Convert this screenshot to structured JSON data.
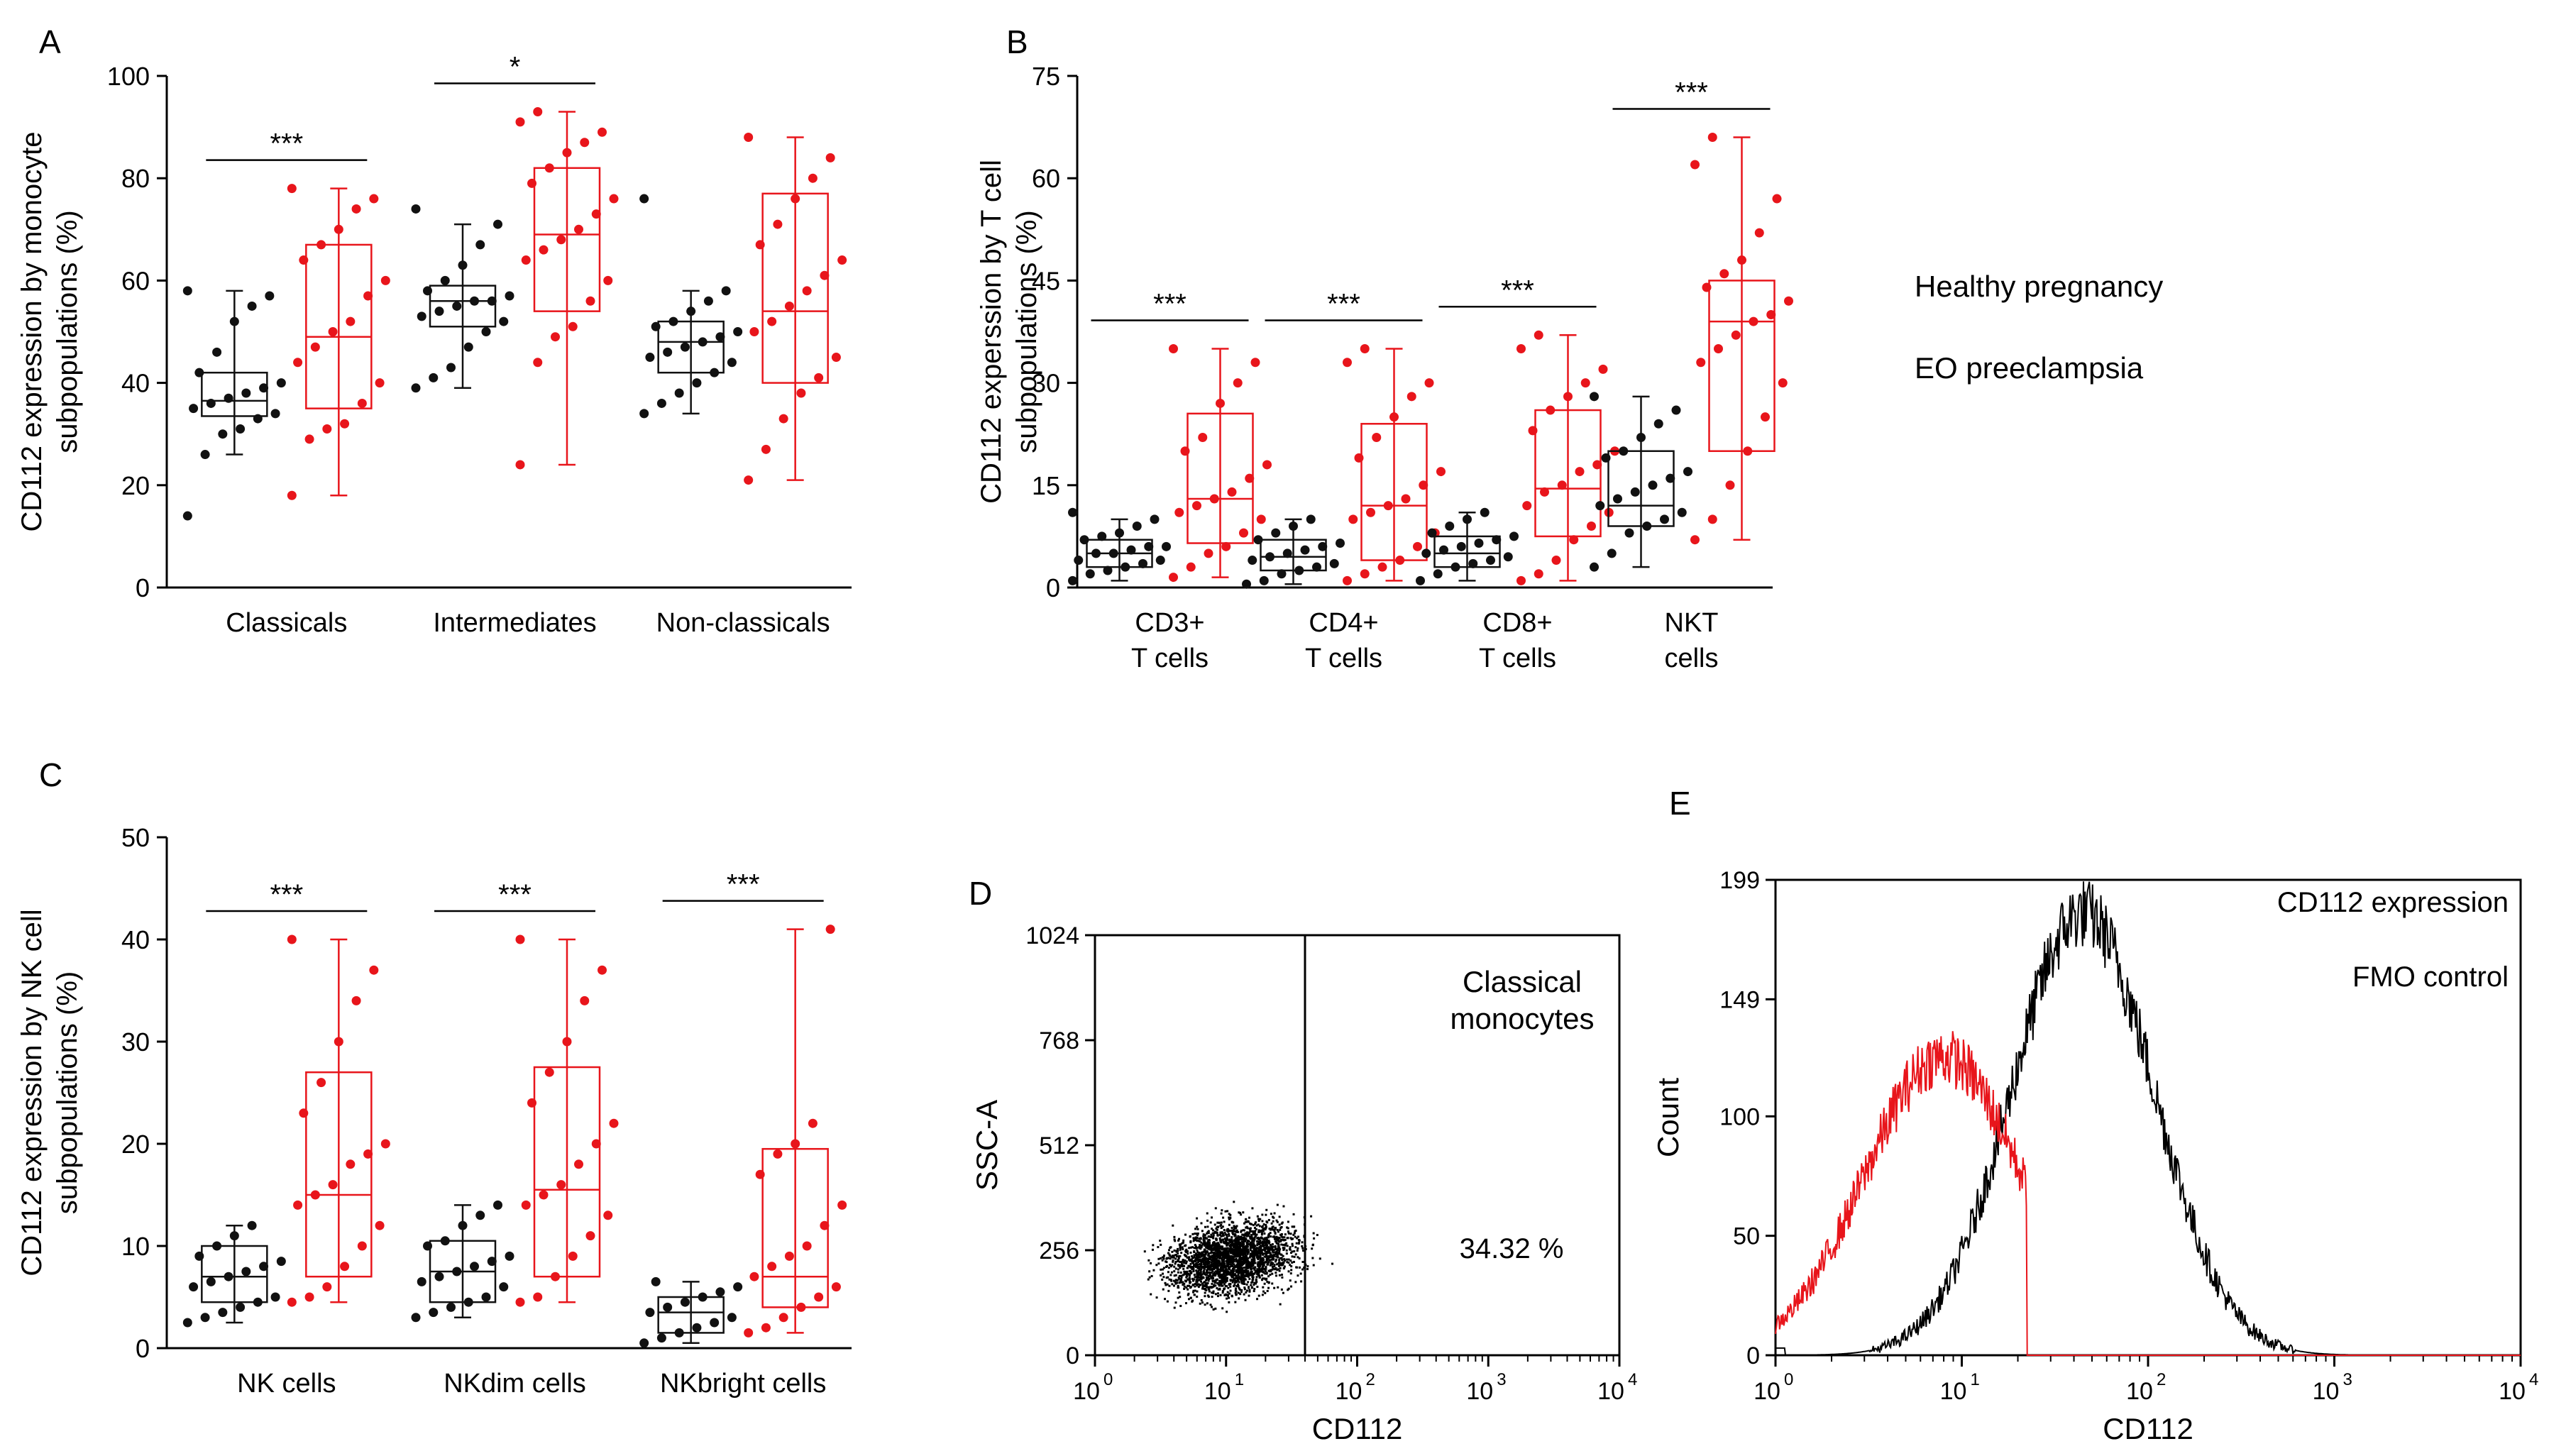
{
  "colors": {
    "healthy": "#111111",
    "preeclampsia": "#e8151b"
  },
  "legend": {
    "healthy": "Healthy pregnancy",
    "preeclampsia": "EO preeclampsia"
  },
  "chart_data": [
    {
      "panel": "A",
      "type": "box",
      "ylabel_line1": "CD112 expression by monocyte",
      "ylabel_line2": "subpopulations  (%)",
      "ylim": [
        0,
        100
      ],
      "yticks": [
        "0",
        "20",
        "40",
        "60",
        "80",
        "100"
      ],
      "groups": [
        {
          "label_lines": [
            "Classicals"
          ],
          "sig": "***",
          "healthy": {
            "min": 26,
            "q1": 33.5,
            "median": 36.5,
            "q3": 42,
            "max": 58,
            "points": [
              14,
              26,
              30,
              31,
              33,
              34,
              35,
              36,
              37,
              38,
              39,
              40,
              42,
              46,
              52,
              55,
              57,
              58
            ]
          },
          "preeclampsia": {
            "min": 18,
            "q1": 35,
            "median": 49,
            "q3": 67,
            "max": 78,
            "points": [
              18,
              29,
              31,
              32,
              36,
              40,
              44,
              47,
              50,
              52,
              57,
              60,
              64,
              67,
              70,
              74,
              76,
              78
            ]
          }
        },
        {
          "label_lines": [
            "Intermediates"
          ],
          "sig": "*",
          "healthy": {
            "min": 39,
            "q1": 51,
            "median": 56,
            "q3": 59,
            "max": 71,
            "points": [
              39,
              41,
              43,
              47,
              50,
              52,
              53,
              54,
              55,
              56,
              56,
              57,
              58,
              60,
              63,
              67,
              71,
              74
            ]
          },
          "preeclampsia": {
            "min": 24,
            "q1": 54,
            "median": 69,
            "q3": 82,
            "max": 93,
            "points": [
              24,
              44,
              49,
              51,
              56,
              60,
              64,
              66,
              68,
              70,
              73,
              76,
              79,
              82,
              85,
              87,
              89,
              91,
              93
            ]
          }
        },
        {
          "label_lines": [
            "Non-classicals"
          ],
          "sig": "",
          "healthy": {
            "min": 34,
            "q1": 42,
            "median": 48,
            "q3": 52,
            "max": 58,
            "points": [
              34,
              36,
              38,
              40,
              42,
              44,
              45,
              46,
              47,
              48,
              49,
              50,
              51,
              52,
              54,
              56,
              58,
              76
            ]
          },
          "preeclampsia": {
            "min": 21,
            "q1": 40,
            "median": 54,
            "q3": 77,
            "max": 88,
            "points": [
              21,
              27,
              33,
              38,
              41,
              45,
              50,
              52,
              55,
              58,
              61,
              64,
              67,
              71,
              76,
              80,
              84,
              88
            ]
          }
        }
      ]
    },
    {
      "panel": "B",
      "type": "box",
      "ylabel_line1": "CD112 experssion by T cell",
      "ylabel_line2": "subpopulations  (%)",
      "ylim": [
        0,
        75
      ],
      "yticks": [
        "0",
        "15",
        "30",
        "45",
        "60",
        "75"
      ],
      "groups": [
        {
          "label_lines": [
            "CD3+",
            "T cells"
          ],
          "sig": "***",
          "healthy": {
            "min": 1,
            "q1": 3,
            "median": 5,
            "q3": 7,
            "max": 10,
            "points": [
              1,
              2,
              2.5,
              3,
              3.5,
              4,
              4,
              5,
              5,
              5.5,
              6,
              6,
              7,
              7.5,
              8,
              9,
              10,
              11
            ]
          },
          "preeclampsia": {
            "min": 1.5,
            "q1": 6.5,
            "median": 13,
            "q3": 25.5,
            "max": 35,
            "points": [
              1.5,
              3,
              5,
              6,
              8,
              10,
              11,
              12,
              13,
              14,
              16,
              18,
              20,
              22,
              27,
              30,
              33,
              35
            ]
          }
        },
        {
          "label_lines": [
            "CD4+",
            "T cells"
          ],
          "sig": "***",
          "healthy": {
            "min": 0.5,
            "q1": 2.5,
            "median": 4.5,
            "q3": 7,
            "max": 10,
            "points": [
              0.5,
              1,
              2,
              2.5,
              3,
              3.5,
              4,
              4.5,
              5,
              5.5,
              6,
              6.5,
              7,
              8,
              9,
              10
            ]
          },
          "preeclampsia": {
            "min": 1,
            "q1": 4,
            "median": 12,
            "q3": 24,
            "max": 35,
            "points": [
              1,
              2,
              3,
              4,
              6,
              8,
              10,
              11,
              12,
              13,
              15,
              17,
              19,
              22,
              25,
              28,
              30,
              33,
              35
            ]
          }
        },
        {
          "label_lines": [
            "CD8+",
            "T cells"
          ],
          "sig": "***",
          "healthy": {
            "min": 1,
            "q1": 3,
            "median": 5,
            "q3": 7.5,
            "max": 11,
            "points": [
              1,
              2,
              3,
              3.5,
              4,
              4.5,
              5,
              5.5,
              6,
              6.5,
              7,
              7.5,
              8,
              9,
              10,
              11
            ]
          },
          "preeclampsia": {
            "min": 1,
            "q1": 7.5,
            "median": 14.5,
            "q3": 26,
            "max": 37,
            "points": [
              1,
              2,
              4,
              7,
              9,
              11,
              12,
              14,
              15,
              17,
              18,
              20,
              23,
              26,
              28,
              30,
              32,
              35,
              37
            ]
          }
        },
        {
          "label_lines": [
            "NKT",
            "cells"
          ],
          "sig": "***",
          "healthy": {
            "min": 3,
            "q1": 9,
            "median": 12,
            "q3": 20,
            "max": 28,
            "points": [
              3,
              5,
              8,
              9,
              10,
              11,
              12,
              13,
              14,
              15,
              16,
              17,
              19,
              20,
              22,
              24,
              26,
              28
            ]
          },
          "preeclampsia": {
            "min": 7,
            "q1": 20,
            "median": 39,
            "q3": 45,
            "max": 66,
            "points": [
              7,
              10,
              15,
              20,
              25,
              30,
              33,
              35,
              37,
              39,
              40,
              42,
              44,
              46,
              48,
              52,
              57,
              62,
              66
            ]
          }
        }
      ]
    },
    {
      "panel": "C",
      "type": "box",
      "ylabel_line1": "CD112 expression by NK cell",
      "ylabel_line2": "subpopulations  (%)",
      "ylim": [
        0,
        50
      ],
      "yticks": [
        "0",
        "10",
        "20",
        "30",
        "40",
        "50"
      ],
      "groups": [
        {
          "label_lines": [
            "NK cells"
          ],
          "sig": "***",
          "healthy": {
            "min": 2.5,
            "q1": 4.5,
            "median": 7,
            "q3": 10,
            "max": 12,
            "points": [
              2.5,
              3,
              3.5,
              4,
              4.5,
              5,
              6,
              6.5,
              7,
              7.5,
              8,
              8.5,
              9,
              10,
              11,
              12
            ]
          },
          "preeclampsia": {
            "min": 4.5,
            "q1": 7,
            "median": 15,
            "q3": 27,
            "max": 40,
            "points": [
              4.5,
              5,
              6,
              8,
              10,
              12,
              14,
              15,
              16,
              18,
              19,
              20,
              23,
              26,
              30,
              34,
              37,
              40
            ]
          }
        },
        {
          "label_lines": [
            "NKdim cells"
          ],
          "sig": "***",
          "healthy": {
            "min": 3,
            "q1": 4.5,
            "median": 7.5,
            "q3": 10.5,
            "max": 14,
            "points": [
              3,
              3.5,
              4,
              4.5,
              5,
              6,
              6.5,
              7,
              7.5,
              8,
              8.5,
              9,
              10,
              10.5,
              12,
              13,
              14
            ]
          },
          "preeclampsia": {
            "min": 4.5,
            "q1": 7,
            "median": 15.5,
            "q3": 27.5,
            "max": 40,
            "points": [
              4.5,
              5,
              7,
              9,
              11,
              13,
              14,
              15,
              16,
              18,
              20,
              22,
              24,
              27,
              30,
              34,
              37,
              40
            ]
          }
        },
        {
          "label_lines": [
            "NKbright cells"
          ],
          "sig": "***",
          "healthy": {
            "min": 0.5,
            "q1": 1.5,
            "median": 3.5,
            "q3": 5,
            "max": 6.5,
            "points": [
              0.5,
              1,
              1.5,
              2,
              2.5,
              3,
              3.5,
              4,
              4.5,
              5,
              5.5,
              6,
              6.5
            ]
          },
          "preeclampsia": {
            "min": 1.5,
            "q1": 4,
            "median": 7,
            "q3": 19.5,
            "max": 41,
            "points": [
              1.5,
              2,
              3,
              4,
              5,
              6,
              7,
              8,
              9,
              10,
              12,
              14,
              17,
              19,
              20,
              22,
              41
            ]
          }
        }
      ]
    },
    {
      "panel": "D",
      "type": "scatter",
      "xlabel": "CD112",
      "ylabel": "SSC-A",
      "xscale": "log",
      "xlim": [
        1,
        10000
      ],
      "ylim": [
        0,
        1024
      ],
      "xtick_bases": [
        "10",
        "10",
        "10",
        "10",
        "10"
      ],
      "xtick_exps": [
        "0",
        "1",
        "2",
        "3",
        "4"
      ],
      "yticks": [
        "0",
        "256",
        "512",
        "768",
        "1024"
      ],
      "gate_x": 40,
      "annotation_line1": "Classical",
      "annotation_line2": "monocytes",
      "percent_label": "34.32 %",
      "cluster": {
        "center_log10_x": 1.05,
        "center_y": 240,
        "spread_log10_x": 0.45,
        "spread_y": 60
      }
    },
    {
      "panel": "E",
      "type": "histogram",
      "xlabel": "CD112",
      "ylabel": "Count",
      "xscale": "log",
      "xlim": [
        1,
        10000
      ],
      "ylim": [
        0,
        199
      ],
      "xtick_bases": [
        "10",
        "10",
        "10",
        "10",
        "10"
      ],
      "xtick_exps": [
        "0",
        "1",
        "2",
        "3",
        "4"
      ],
      "yticks": [
        "0",
        "50",
        "100",
        "149",
        "199"
      ],
      "series": [
        {
          "name": "CD112 expression",
          "color": "black",
          "peak_log10_x": 1.65,
          "peak_count": 185,
          "spread": 0.38
        },
        {
          "name": "FMO control",
          "color": "red",
          "peak_log10_x": 0.9,
          "peak_count": 125,
          "spread": 0.42
        }
      ]
    }
  ],
  "panel_letters": [
    "A",
    "B",
    "C",
    "D",
    "E"
  ]
}
